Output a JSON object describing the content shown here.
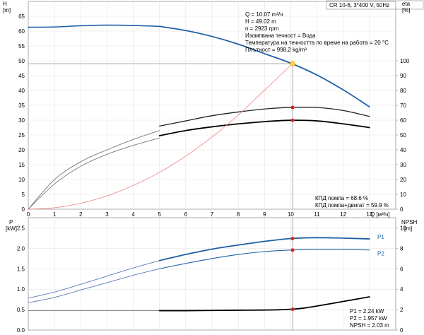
{
  "header": {
    "title": "CR 10-6, 3*400 V, 50Hz"
  },
  "info_top": [
    "Q = 10.07 m³/ч",
    "H = 49.02 m",
    "n = 2923 rpm",
    "Изомпвана течност = Вода",
    "Температура на течността по време на работа = 20 °C",
    "Плътност = 998.2 kg/m³"
  ],
  "info_eff": [
    "КПД помпа = 68.6 %",
    "КПД помпа+двигат  = 59.9 %"
  ],
  "info_bottom": [
    "P1 = 2.24 kW",
    "P2 = 1.957 kW",
    "NPSH = 2.03 m"
  ],
  "chart_data": [
    {
      "type": "line",
      "title": "",
      "xlabel": "Q [м³/ч]",
      "ylabel": "H\n[m]",
      "ylabel_right": "eta\n[%]",
      "xlim": [
        0,
        14
      ],
      "ylim": [
        0,
        70
      ],
      "ylim_right": [
        0,
        140
      ],
      "x_ticks": [
        0,
        1,
        2,
        3,
        4,
        5,
        6,
        7,
        8,
        9,
        10,
        11,
        12,
        13
      ],
      "y_ticks": [
        0,
        5,
        10,
        15,
        20,
        25,
        30,
        35,
        40,
        45,
        50,
        55,
        60,
        65
      ],
      "y_right_ticks": [
        0,
        10,
        20,
        30,
        40,
        50,
        60,
        70,
        80,
        90,
        100
      ],
      "grid": true,
      "duty_point": {
        "q": 10.07,
        "h": 49.02,
        "eta_pump": 68.6,
        "eta_total": 59.9
      },
      "series": [
        {
          "name": "H",
          "axis": "left",
          "color": "#1f5fa6",
          "width": 1.6,
          "x": [
            0,
            1,
            2,
            3,
            4,
            5
          ],
          "y": [
            61.3,
            61.4,
            61.8,
            62.0,
            61.9,
            61.6
          ],
          "color_thin": "#5a7ab8"
        },
        {
          "name": "H",
          "axis": "left",
          "color": "#1f5fa6",
          "width": 1.8,
          "x": [
            5,
            6,
            7,
            8,
            9,
            10,
            11,
            12,
            13
          ],
          "y": [
            61.6,
            60.2,
            58.2,
            55.6,
            52.4,
            49.2,
            45.2,
            40.2,
            34.5
          ]
        },
        {
          "name": "eta pump",
          "axis": "right",
          "color": "#777777",
          "width": 0.9,
          "x": [
            0,
            1,
            2,
            3,
            4,
            5
          ],
          "y": [
            0,
            20,
            32,
            40,
            47,
            53
          ]
        },
        {
          "name": "eta pump",
          "axis": "right",
          "color": "#222222",
          "width": 1.3,
          "x": [
            5,
            6,
            7,
            8,
            9,
            10,
            11,
            12,
            13
          ],
          "y": [
            56,
            59.5,
            63,
            65.5,
            67.5,
            68.6,
            68.5,
            66.5,
            62.5
          ]
        },
        {
          "name": "eta total",
          "axis": "right",
          "color": "#777777",
          "width": 0.9,
          "x": [
            0,
            1,
            2,
            3,
            4,
            5
          ],
          "y": [
            0,
            17,
            29,
            37,
            43,
            48
          ]
        },
        {
          "name": "eta total",
          "axis": "right",
          "color": "#000000",
          "width": 1.8,
          "x": [
            5,
            6,
            7,
            8,
            9,
            10,
            11,
            12,
            13
          ],
          "y": [
            49.5,
            53,
            55.5,
            57.5,
            59,
            59.9,
            59.5,
            57.5,
            55
          ]
        },
        {
          "name": "system",
          "axis": "left",
          "color": "#f08080",
          "width": 0.8,
          "x": [
            0,
            1,
            2,
            3,
            4,
            5,
            6,
            7,
            8,
            9,
            10.07
          ],
          "y": [
            0,
            0.5,
            2,
            4.5,
            8,
            12.4,
            17.9,
            24.3,
            31.7,
            40.1,
            49.02
          ]
        }
      ]
    },
    {
      "type": "line",
      "title": "",
      "xlabel": "",
      "ylabel": "P\n[kW]",
      "ylabel_right": "NPSH\n[m]",
      "xlim": [
        0,
        14
      ],
      "ylim": [
        0,
        2.75
      ],
      "ylim_right": [
        0,
        11
      ],
      "y_ticks": [
        0.0,
        0.5,
        1.0,
        1.5,
        2.0,
        2.5
      ],
      "y_right_ticks": [
        0,
        2,
        4,
        6,
        8,
        10
      ],
      "grid": true,
      "duty_point": {
        "q": 10.07,
        "p1": 2.24,
        "p2": 1.957,
        "npsh": 2.03
      },
      "series": [
        {
          "name": "P1",
          "axis": "left",
          "color": "#5a7ab8",
          "width": 0.9,
          "x": [
            0,
            1,
            2,
            3,
            4,
            5
          ],
          "y": [
            0.78,
            0.93,
            1.12,
            1.32,
            1.52,
            1.7
          ]
        },
        {
          "name": "P1",
          "axis": "left",
          "color": "#1f5fa6",
          "width": 1.8,
          "x": [
            5,
            6,
            7,
            8,
            9,
            10,
            11,
            12,
            13
          ],
          "y": [
            1.7,
            1.85,
            1.98,
            2.08,
            2.17,
            2.24,
            2.26,
            2.25,
            2.23
          ]
        },
        {
          "name": "P2",
          "axis": "left",
          "color": "#5a7ab8",
          "width": 0.9,
          "x": [
            0,
            1,
            2,
            3,
            4,
            5
          ],
          "y": [
            0.67,
            0.8,
            0.98,
            1.16,
            1.34,
            1.5
          ]
        },
        {
          "name": "P2",
          "axis": "left",
          "color": "#1f5fa6",
          "width": 1.1,
          "x": [
            5,
            6,
            7,
            8,
            9,
            10,
            11,
            12,
            13
          ],
          "y": [
            1.5,
            1.63,
            1.75,
            1.85,
            1.92,
            1.957,
            1.97,
            1.97,
            1.96
          ]
        },
        {
          "name": "NPSH",
          "axis": "right",
          "color": "#777777",
          "width": 0.9,
          "x": [
            0,
            1,
            2,
            3,
            4,
            5
          ],
          "y": [
            1.9,
            1.9,
            1.9,
            1.9,
            1.9,
            1.9
          ]
        },
        {
          "name": "NPSH",
          "axis": "right",
          "color": "#000000",
          "width": 1.8,
          "x": [
            5,
            6,
            7,
            8,
            9,
            9.5,
            10,
            10.5,
            11,
            12,
            13
          ],
          "y": [
            1.9,
            1.9,
            1.92,
            1.94,
            1.96,
            1.98,
            2.03,
            2.15,
            2.35,
            2.8,
            3.25
          ]
        }
      ],
      "labels": [
        {
          "text": "P1",
          "x": 13.3,
          "y": 2.28,
          "color": "#1f5fa6"
        },
        {
          "text": "P2",
          "x": 13.3,
          "y": 1.88,
          "color": "#1f5fa6"
        }
      ]
    }
  ]
}
